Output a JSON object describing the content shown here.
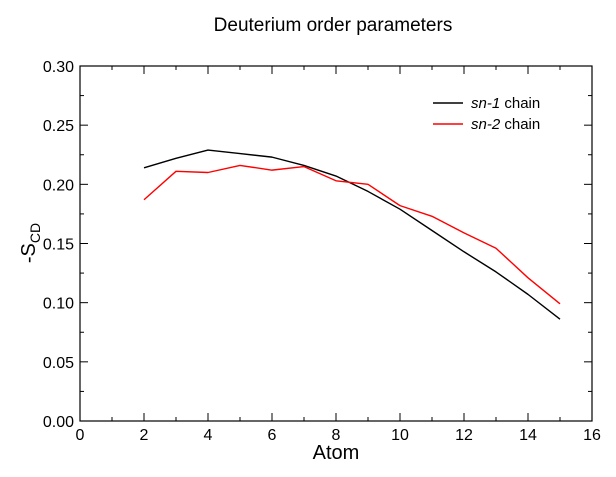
{
  "chart_data": {
    "type": "line",
    "title": "Deuterium order parameters",
    "xlabel": "Atom",
    "ylabel": "-S",
    "ylabel_sub": "CD",
    "xlim": [
      0,
      16
    ],
    "ylim": [
      0.0,
      0.3
    ],
    "xticks": [
      "0",
      "2",
      "4",
      "6",
      "8",
      "10",
      "12",
      "14",
      "16"
    ],
    "yticks": [
      "0.00",
      "0.05",
      "0.10",
      "0.15",
      "0.20",
      "0.25",
      "0.30"
    ],
    "grid": false,
    "legend_position": "top-right",
    "series": [
      {
        "name_italic": "sn-1",
        "name_rest": " chain",
        "color": "#000000",
        "x": [
          2,
          3,
          4,
          5,
          6,
          7,
          8,
          9,
          10,
          11,
          12,
          13,
          14,
          15
        ],
        "y": [
          0.214,
          0.222,
          0.229,
          0.226,
          0.223,
          0.216,
          0.207,
          0.194,
          0.179,
          0.161,
          0.143,
          0.126,
          0.107,
          0.086
        ]
      },
      {
        "name_italic": "sn-2",
        "name_rest": " chain",
        "color": "#ff0000",
        "x": [
          2,
          3,
          4,
          5,
          6,
          7,
          8,
          9,
          10,
          11,
          12,
          13,
          14,
          15
        ],
        "y": [
          0.187,
          0.211,
          0.21,
          0.216,
          0.212,
          0.215,
          0.203,
          0.2,
          0.182,
          0.173,
          0.159,
          0.146,
          0.121,
          0.099
        ]
      }
    ]
  }
}
